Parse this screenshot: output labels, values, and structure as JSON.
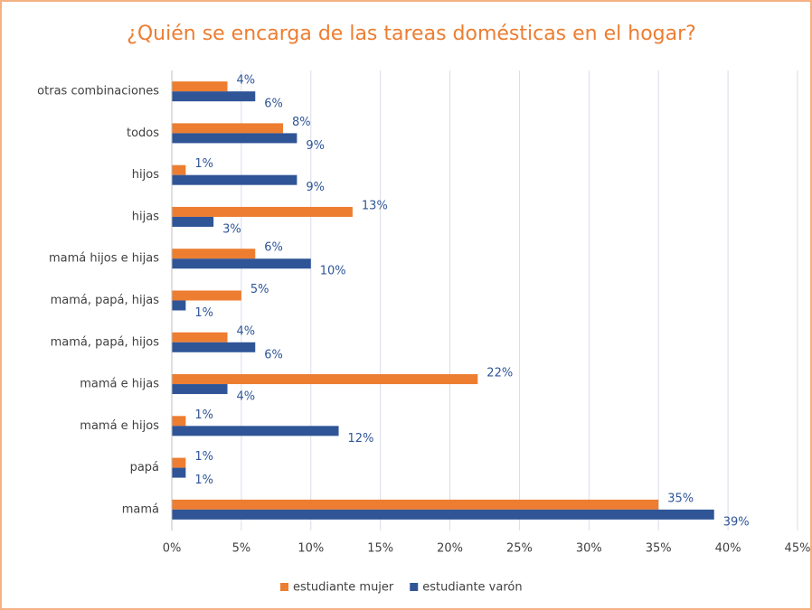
{
  "chart_data": {
    "type": "bar",
    "orientation": "horizontal",
    "title": "¿Quién se encarga de las tareas domésticas en el hogar?",
    "categories": [
      "otras combinaciones",
      "todos",
      "hijos",
      "hijas",
      "mamá hijos e hijas",
      "mamá, papá, hijas",
      "mamá, papá, hijos",
      "mamá e hijas",
      "mamá e hijos",
      "papá",
      "mamá"
    ],
    "series": [
      {
        "name": "estudiante mujer",
        "color": "#ed7d31",
        "values": [
          4,
          8,
          1,
          13,
          6,
          5,
          4,
          22,
          1,
          1,
          35
        ],
        "value_labels": [
          "4%",
          "8%",
          "1%",
          "13%",
          "6%",
          "5%",
          "4%",
          "22%",
          "1%",
          "1%",
          "35%"
        ]
      },
      {
        "name": "estudiante varón",
        "color": "#2f5597",
        "values": [
          6,
          9,
          9,
          3,
          10,
          1,
          6,
          4,
          12,
          1,
          39
        ],
        "value_labels": [
          "6%",
          "9%",
          "9%",
          "3%",
          "10%",
          "1%",
          "6%",
          "4%",
          "12%",
          "1%",
          "39%"
        ]
      }
    ],
    "xlim": [
      0,
      45
    ],
    "xticks": [
      {
        "value": 0,
        "label": "0%"
      },
      {
        "value": 5,
        "label": "5%"
      },
      {
        "value": 10,
        "label": "10%"
      },
      {
        "value": 15,
        "label": "15%"
      },
      {
        "value": 20,
        "label": "20%"
      },
      {
        "value": 25,
        "label": "25%"
      },
      {
        "value": 30,
        "label": "30%"
      },
      {
        "value": 35,
        "label": "35%"
      },
      {
        "value": 40,
        "label": "40%"
      },
      {
        "value": 45,
        "label": "45%"
      }
    ],
    "grid": true,
    "legend": "bottom"
  }
}
